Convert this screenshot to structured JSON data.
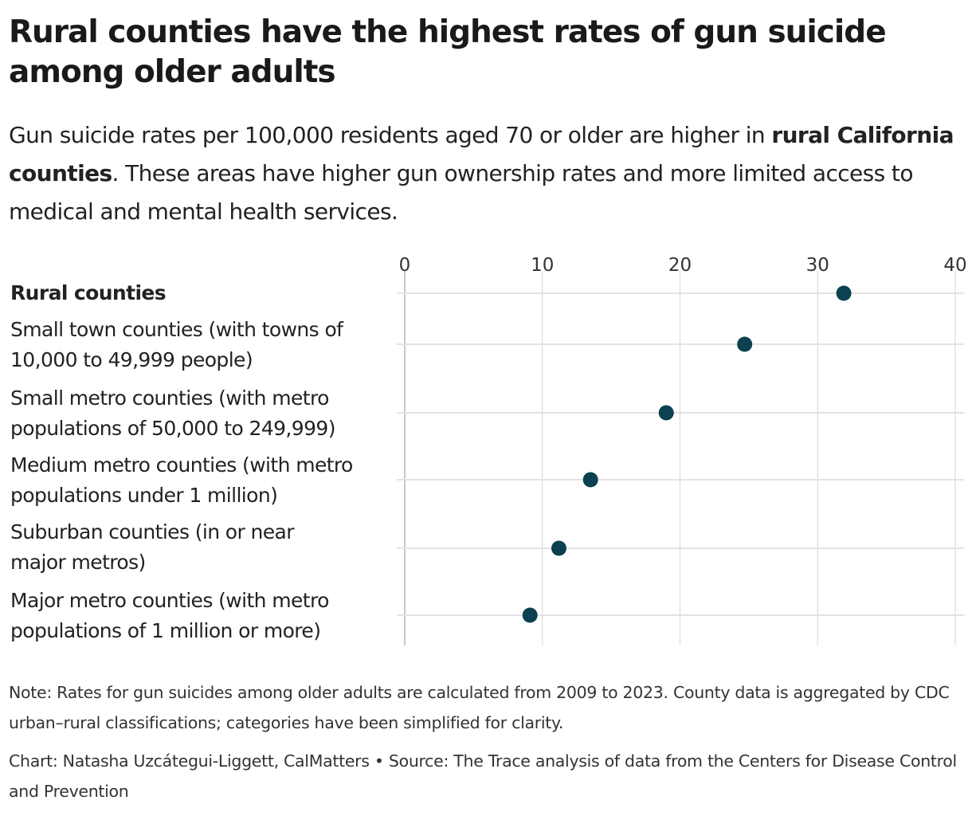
{
  "title": "Rural counties have the highest rates of gun suicide among older adults",
  "subtitle": {
    "part1": "Gun suicide rates per 100,000 residents aged 70 or older are higher in ",
    "bold": "rural California counties",
    "part2": ". These areas have higher gun ownership rates and more limited access to medical and mental health services."
  },
  "chart_data": {
    "type": "scatter",
    "orientation": "horizontal dot plot",
    "categories": [
      "Rural counties",
      "Small town counties (with towns of 10,000 to 49,999 people)",
      "Small metro counties (with metro populations of 50,000 to 249,999)",
      "Medium metro counties (with metro populations under 1 million)",
      "Suburban counties (in or near major metros)",
      "Major metro counties (with metro populations of 1 million or more)"
    ],
    "values": [
      31.9,
      24.7,
      19.0,
      13.5,
      11.2,
      9.1
    ],
    "xlim": [
      0,
      40
    ],
    "xticks": [
      "0",
      "10",
      "20",
      "30",
      "40"
    ],
    "axis_position": "top",
    "grid": true,
    "dot_color": "#0b4150"
  },
  "note": "Note: Rates for gun suicides among older adults are calculated from 2009 to 2023. County data is aggregated by CDC urban–rural classifications; categories have been simplified for clarity.",
  "credit": "Chart: Natasha Uzcátegui-Liggett, CalMatters • Source: The Trace analysis of data from the Centers for Disease Control and Prevention"
}
